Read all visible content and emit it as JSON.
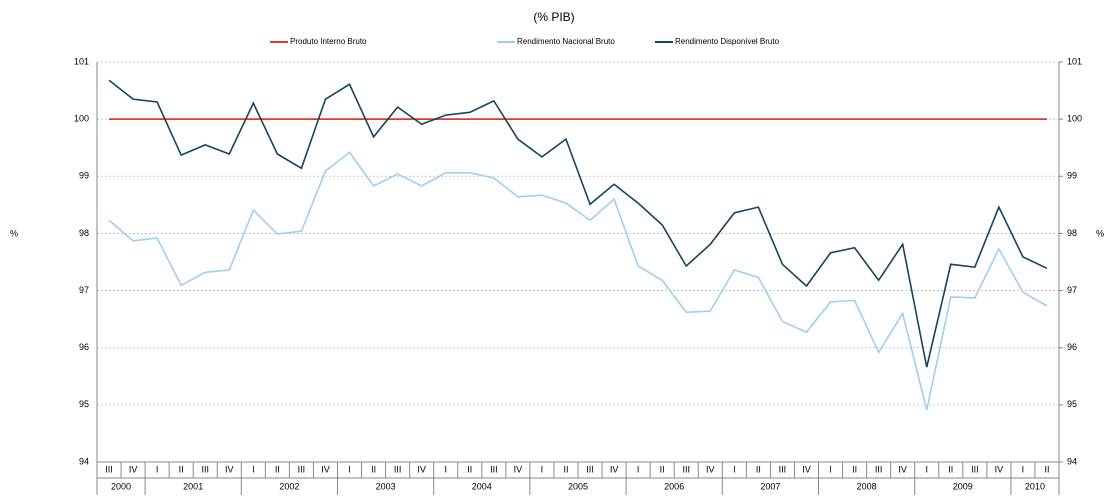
{
  "chart_data": {
    "type": "line",
    "title": "(% PIB)",
    "y_label": "%",
    "y2_label": "%",
    "categories": [
      "III",
      "IV",
      "I",
      "II",
      "III",
      "IV",
      "I",
      "II",
      "III",
      "IV",
      "I",
      "II",
      "III",
      "IV",
      "I",
      "II",
      "III",
      "IV",
      "I",
      "II",
      "III",
      "IV",
      "I",
      "II",
      "III",
      "IV",
      "I",
      "II",
      "III",
      "IV",
      "I",
      "II",
      "III",
      "IV",
      "I",
      "II",
      "III",
      "IV",
      "I",
      "II"
    ],
    "category_groups": [
      "2000",
      "2001",
      "2002",
      "2003",
      "2004",
      "2005",
      "2006",
      "2007",
      "2008",
      "2009",
      "2010"
    ],
    "series": [
      {
        "name": "Produto Interno Bruto",
        "color": "#e03a2f",
        "values": [
          100,
          100,
          100,
          100,
          100,
          100,
          100,
          100,
          100,
          100,
          100,
          100,
          100,
          100,
          100,
          100,
          100,
          100,
          100,
          100,
          100,
          100,
          100,
          100,
          100,
          100,
          100,
          100,
          100,
          100,
          100,
          100,
          100,
          100,
          100,
          100,
          100,
          100,
          100,
          100
        ]
      },
      {
        "name": "Rendimento Nacional Bruto",
        "color": "#9dcfee",
        "values": [
          98.23,
          97.87,
          97.92,
          97.09,
          97.32,
          97.36,
          98.41,
          97.99,
          98.04,
          99.09,
          99.42,
          98.83,
          99.04,
          98.83,
          99.06,
          99.06,
          98.97,
          98.64,
          98.67,
          98.53,
          98.23,
          98.6,
          97.43,
          97.18,
          96.62,
          96.64,
          97.36,
          97.23,
          96.46,
          96.27,
          96.8,
          96.83,
          95.92,
          96.6,
          94.91,
          96.89,
          96.87,
          97.73,
          96.97,
          96.73
        ]
      },
      {
        "name": "Rendimento Disponível Bruto",
        "color": "#12455e",
        "values": [
          100.68,
          100.35,
          100.3,
          99.37,
          99.55,
          99.39,
          100.28,
          99.39,
          99.14,
          100.35,
          100.61,
          99.69,
          100.21,
          99.91,
          100.07,
          100.12,
          100.32,
          99.65,
          99.34,
          99.65,
          98.51,
          98.86,
          98.53,
          98.15,
          97.43,
          97.81,
          98.36,
          98.46,
          97.46,
          97.08,
          97.66,
          97.75,
          97.18,
          97.81,
          95.66,
          97.46,
          97.41,
          98.46,
          97.59,
          97.39
        ]
      }
    ],
    "ylim": [
      94,
      101
    ],
    "yticks": [
      94,
      95,
      96,
      97,
      98,
      99,
      100,
      101
    ],
    "y2lim": [
      94,
      101
    ],
    "y2ticks": [
      94,
      95,
      96,
      97,
      98,
      99,
      100,
      101
    ],
    "grid": true
  }
}
